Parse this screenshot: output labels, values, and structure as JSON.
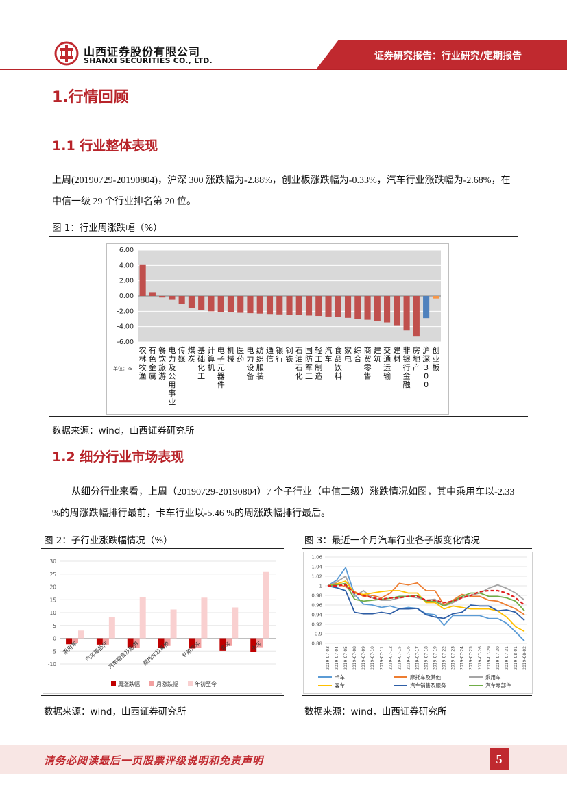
{
  "header": {
    "company_cn": "山西证券股份有限公司",
    "company_en": "SHANXI SECURITIES CO., LTD.",
    "report_type": "证券研究报告：行业研究/定期报告"
  },
  "section1": {
    "title": "1.行情回顾"
  },
  "section11": {
    "title": "1.1 行业整体表现",
    "para": "上周(20190729-20190804)，沪深 300 涨跌幅为-2.88%，创业板涨跌幅为-0.33%，汽车行业涨跌幅为-2.68%，在中信一级 29 个行业排名第 20 位。",
    "fig1_caption": "图 1：行业周涨跌幅（%）",
    "source": "数据来源：wind，山西证券研究所"
  },
  "section12": {
    "title": "1.2 细分行业市场表现",
    "para": "从细分行业来看，上周（20190729-20190804）7 个子行业（中信三级）涨跌情况如图，其中乘用车以-2.33 %的周涨跌幅排行最前，卡车行业以-5.46 %的周涨跌幅排行最后。",
    "fig2_caption": "图 2：子行业涨跌幅情况（%）",
    "fig3_caption": "图 3：最近一个月汽车行业各子版变化情况",
    "source2": "数据来源：wind，山西证券研究所",
    "source3": "数据来源：wind，山西证券研究所"
  },
  "footer": {
    "disclaimer": "请务必阅读最后一页股票评级说明和免责声明",
    "page": "5"
  },
  "chart_data": [
    {
      "type": "bar",
      "unit_label": "单位：%",
      "categories": [
        "农林牧渔",
        "有色金属",
        "餐饮旅游",
        "电力及公用事业",
        "传媒",
        "煤炭",
        "基础化工",
        "计算机",
        "电子元器件",
        "机械",
        "医药",
        "电力设备",
        "纺织服装",
        "通信",
        "银行",
        "钢铁",
        "石油石化",
        "国防军工",
        "轻工制造",
        "汽车",
        "食品饮料",
        "家电",
        "综合",
        "商贸零售",
        "建筑",
        "交通运输",
        "建材",
        "非银行金融",
        "房地产",
        "沪深300",
        "创业板"
      ],
      "values": [
        4.05,
        0.5,
        -0.2,
        -0.5,
        -1.0,
        -1.6,
        -1.8,
        -2.0,
        -2.1,
        -2.15,
        -2.2,
        -2.25,
        -2.3,
        -2.35,
        -2.4,
        -2.45,
        -2.5,
        -2.55,
        -2.6,
        -2.68,
        -2.75,
        -2.85,
        -3.0,
        -3.1,
        -3.3,
        -3.45,
        -3.9,
        -4.5,
        -5.3,
        -2.88,
        -0.33
      ],
      "ylim": [
        -6,
        6
      ],
      "yticks": [
        "6.00",
        "4.00",
        "2.00",
        "0.00",
        "-2.00",
        "-4.00",
        "-6.00"
      ],
      "colors": {
        "industry": "#c0504d",
        "hs300": "#4f81bd",
        "cyb": "#f79646"
      }
    },
    {
      "type": "bar",
      "categories": [
        "乘用车",
        "汽车零部件",
        "汽车销售及服务",
        "摩托车及其他",
        "专用汽车",
        "客车",
        "卡车"
      ],
      "series": [
        {
          "name": "周涨跌幅",
          "values": [
            -2.33,
            -2.5,
            -3.5,
            -3.8,
            -4.0,
            -4.9,
            -5.46
          ],
          "color": "#c00000"
        },
        {
          "name": "月涨跌幅",
          "values": [
            -2.0,
            -2.5,
            -3.8,
            -3.0,
            -3.8,
            -3.0,
            -3.5
          ],
          "color": "#f2a0a0"
        },
        {
          "name": "年初至今",
          "values": [
            3.0,
            8.3,
            16.0,
            11.2,
            15.8,
            12.0,
            25.8
          ],
          "color": "#f9d0d0"
        }
      ],
      "ylim": [
        -10,
        30
      ],
      "yticks": [
        "30",
        "25",
        "20",
        "15",
        "10",
        "5",
        "0",
        "-5",
        "-10"
      ]
    },
    {
      "type": "line",
      "x": [
        "2019-07-03",
        "2019-07-04",
        "2019-07-05",
        "2019-07-08",
        "2019-07-09",
        "2019-07-10",
        "2019-07-11",
        "2019-07-12",
        "2019-07-15",
        "2019-07-16",
        "2019-07-17",
        "2019-07-18",
        "2019-07-19",
        "2019-07-22",
        "2019-07-23",
        "2019-07-24",
        "2019-07-25",
        "2019-07-26",
        "2019-07-29",
        "2019-07-30",
        "2019-07-31",
        "2019-08-01",
        "2019-08-02"
      ],
      "ylim": [
        0.88,
        1.06
      ],
      "yticks": [
        "1.06",
        "1.04",
        "1.02",
        "1",
        "0.98",
        "0.96",
        "0.94",
        "0.92",
        "0.9",
        "0.88"
      ],
      "series": [
        {
          "name": "卡车",
          "color": "#5b9bd5",
          "values": [
            1.0,
            1.012,
            1.038,
            0.982,
            0.962,
            0.96,
            0.955,
            0.958,
            0.952,
            0.955,
            0.953,
            0.942,
            0.94,
            0.918,
            0.938,
            0.938,
            0.938,
            0.938,
            0.932,
            0.932,
            0.922,
            0.904,
            0.885
          ]
        },
        {
          "name": "摩托车及其他",
          "color": "#ed7d31",
          "values": [
            1.0,
            1.005,
            0.998,
            0.988,
            0.978,
            0.98,
            0.975,
            0.985,
            1.005,
            1.002,
            1.006,
            0.99,
            0.99,
            0.96,
            0.97,
            0.982,
            0.978,
            0.978,
            0.97,
            0.968,
            0.96,
            0.952,
            0.94
          ]
        },
        {
          "name": "乘用车",
          "color": "#a5a5a5",
          "values": [
            1.0,
            1.008,
            1.02,
            0.978,
            0.99,
            0.975,
            0.97,
            0.97,
            0.975,
            0.978,
            0.975,
            0.97,
            0.972,
            0.958,
            0.965,
            0.975,
            0.98,
            0.985,
            0.995,
            1.002,
            0.995,
            0.985,
            0.97
          ]
        },
        {
          "name": "客车",
          "color": "#ffc000",
          "values": [
            1.0,
            1.004,
            1.01,
            0.985,
            0.982,
            0.985,
            0.988,
            0.99,
            0.99,
            0.985,
            0.985,
            0.965,
            0.965,
            0.952,
            0.958,
            0.955,
            0.952,
            0.952,
            0.952,
            0.948,
            0.935,
            0.915,
            0.905
          ]
        },
        {
          "name": "汽车销售及服务",
          "color": "#2e5ea6",
          "values": [
            1.0,
            0.996,
            0.99,
            0.945,
            0.942,
            0.942,
            0.945,
            0.942,
            0.952,
            0.952,
            0.953,
            0.94,
            0.935,
            0.932,
            0.942,
            0.945,
            0.96,
            0.958,
            0.958,
            0.948,
            0.95,
            0.945,
            0.928
          ]
        },
        {
          "name": "汽车零部件",
          "color": "#70ad47",
          "values": [
            1.0,
            1.002,
            1.005,
            0.972,
            0.968,
            0.97,
            0.972,
            0.974,
            0.978,
            0.978,
            0.98,
            0.968,
            0.968,
            0.958,
            0.968,
            0.978,
            0.985,
            0.985,
            0.978,
            0.978,
            0.975,
            0.968,
            0.948
          ]
        },
        {
          "name": "",
          "color": "#e01f1f",
          "dashed": true,
          "values": [
            1.0,
            1.0,
            1.002,
            0.985,
            0.98,
            0.975,
            0.972,
            0.975,
            0.975,
            0.978,
            0.978,
            0.97,
            0.97,
            0.965,
            0.968,
            0.975,
            0.98,
            0.988,
            0.99,
            0.99,
            0.985,
            0.975,
            0.96
          ]
        }
      ]
    }
  ]
}
